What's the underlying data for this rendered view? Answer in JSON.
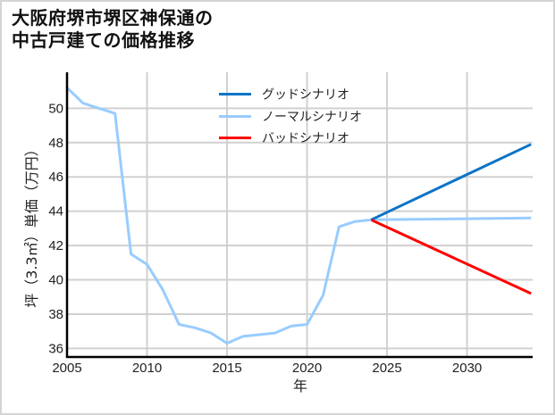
{
  "title": {
    "line1": "大阪府堺市堺区神保通の",
    "line2": "中古戸建ての価格推移"
  },
  "colors": {
    "good": "#0b74c8",
    "normal": "#99ccff",
    "bad": "#ff0000",
    "grid": "#d0d0d0",
    "axis": "#000000"
  },
  "chart_data": {
    "type": "line",
    "title": "大阪府堺市堺区神保通の中古戸建ての価格推移",
    "xlabel": "年",
    "ylabel": "坪（3.3㎡）単価（万円）",
    "xlim": [
      2005,
      2034.1
    ],
    "ylim": [
      35.5,
      52.1
    ],
    "xticks": [
      2005,
      2010,
      2015,
      2020,
      2025,
      2030
    ],
    "yticks": [
      36,
      38,
      40,
      42,
      44,
      46,
      48,
      50
    ],
    "grid": true,
    "legend_position": "upper center",
    "legend": [
      "グッドシナリオ",
      "ノーマルシナリオ",
      "バッドシナリオ"
    ],
    "series": [
      {
        "name": "ノーマルシナリオ",
        "role": "historical",
        "color": "#99ccff",
        "x": [
          2005,
          2006,
          2007,
          2008,
          2009,
          2010,
          2011,
          2012,
          2013,
          2014,
          2015,
          2016,
          2017,
          2018,
          2019,
          2020,
          2021,
          2022,
          2023,
          2024
        ],
        "values": [
          51.2,
          50.3,
          50.0,
          49.7,
          41.5,
          40.9,
          39.4,
          37.4,
          37.2,
          36.9,
          36.3,
          36.7,
          36.8,
          36.9,
          37.3,
          37.4,
          39.1,
          43.1,
          43.4,
          43.5
        ]
      },
      {
        "name": "グッドシナリオ",
        "color": "#0b74c8",
        "x": [
          2024,
          2034
        ],
        "values": [
          43.5,
          47.9
        ]
      },
      {
        "name": "ノーマルシナリオ",
        "color": "#99ccff",
        "x": [
          2024,
          2034
        ],
        "values": [
          43.5,
          43.6
        ]
      },
      {
        "name": "バッドシナリオ",
        "color": "#ff0000",
        "x": [
          2024,
          2034
        ],
        "values": [
          43.5,
          39.2
        ]
      }
    ]
  }
}
